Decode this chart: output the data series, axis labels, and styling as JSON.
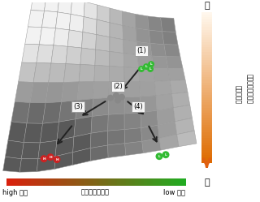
{
  "bg_color": "#ffffff",
  "right_label_top": "低",
  "right_label_bottom": "高",
  "right_text1": "細胞間通信を行う",
  "right_text2": "分子の濃度",
  "bottom_label_left": "high 状態",
  "bottom_label_center": "細胞の内部状態",
  "bottom_label_right": "low 状態",
  "label1": "(1)",
  "label2": "(2)",
  "label3": "(3)",
  "label4": "(4)",
  "cell_green_color": "#33bb33",
  "cell_red_color": "#cc2222",
  "cell_gray_color": "#888888",
  "surface_grid_color": "#999999",
  "Nu": 11,
  "Nv": 10
}
